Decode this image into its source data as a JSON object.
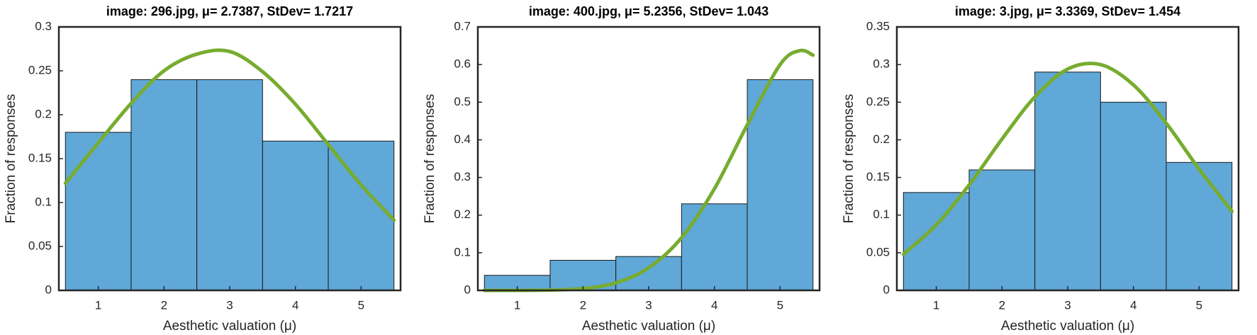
{
  "chart_data": [
    {
      "type": "histogram",
      "title": "image: 296.jpg, μ= 2.7387, StDev= 1.7217",
      "x_label": "Aesthetic valuation (μ)",
      "y_label": "Fraction of responses",
      "bins": [
        0.5,
        1.5,
        2.5,
        3.5,
        4.5,
        5.5
      ],
      "values": [
        0.18,
        0.24,
        0.24,
        0.17,
        0.17
      ],
      "color": "#5fa8d8",
      "fit": {
        "x": [
          0.5,
          1,
          1.5,
          2,
          2.5,
          3,
          3.5,
          4,
          4.5,
          5,
          5.5
        ],
        "values": [
          0.122,
          0.168,
          0.213,
          0.25,
          0.269,
          0.272,
          0.249,
          0.212,
          0.166,
          0.12,
          0.08
        ],
        "color": "#77ac30"
      },
      "xlim": [
        0.4,
        5.6
      ],
      "xticks": [
        1,
        2,
        3,
        4,
        5
      ],
      "ylim": [
        0,
        0.3
      ],
      "yticks": [
        0,
        0.05,
        0.1,
        0.15,
        0.2,
        0.25,
        0.3
      ]
    },
    {
      "type": "histogram",
      "title": "image: 400.jpg, μ= 5.2356, StDev= 1.043",
      "x_label": "Aesthetic valuation (μ)",
      "y_label": "Fraction of responses",
      "bins": [
        0.5,
        1.5,
        2.5,
        3.5,
        4.5,
        5.5
      ],
      "values": [
        0.04,
        0.08,
        0.09,
        0.23,
        0.56
      ],
      "color": "#5fa8d8",
      "fit": {
        "x": [
          0.5,
          1,
          1.5,
          2,
          2.5,
          3,
          3.5,
          4,
          4.5,
          5,
          5.3,
          5.5
        ],
        "values": [
          0,
          0,
          0.001,
          0.005,
          0.02,
          0.06,
          0.14,
          0.27,
          0.44,
          0.6,
          0.637,
          0.625
        ],
        "color": "#77ac30"
      },
      "xlim": [
        0.4,
        5.6
      ],
      "xticks": [
        1,
        2,
        3,
        4,
        5
      ],
      "ylim": [
        0,
        0.7
      ],
      "yticks": [
        0,
        0.1,
        0.2,
        0.3,
        0.4,
        0.5,
        0.6,
        0.7
      ]
    },
    {
      "type": "histogram",
      "title": "image: 3.jpg, μ= 3.3369, StDev= 1.454",
      "x_label": "Aesthetic valuation (μ)",
      "y_label": "Fraction of responses",
      "bins": [
        0.5,
        1.5,
        2.5,
        3.5,
        4.5,
        5.5
      ],
      "values": [
        0.13,
        0.16,
        0.29,
        0.25,
        0.17
      ],
      "color": "#5fa8d8",
      "fit": {
        "x": [
          0.5,
          1,
          1.5,
          2,
          2.5,
          3,
          3.5,
          4,
          4.5,
          5,
          5.5
        ],
        "values": [
          0.048,
          0.087,
          0.14,
          0.201,
          0.257,
          0.294,
          0.3,
          0.273,
          0.222,
          0.161,
          0.105
        ],
        "color": "#77ac30"
      },
      "xlim": [
        0.4,
        5.6
      ],
      "xticks": [
        1,
        2,
        3,
        4,
        5
      ],
      "ylim": [
        0,
        0.35
      ],
      "yticks": [
        0,
        0.05,
        0.1,
        0.15,
        0.2,
        0.25,
        0.3,
        0.35
      ]
    }
  ]
}
